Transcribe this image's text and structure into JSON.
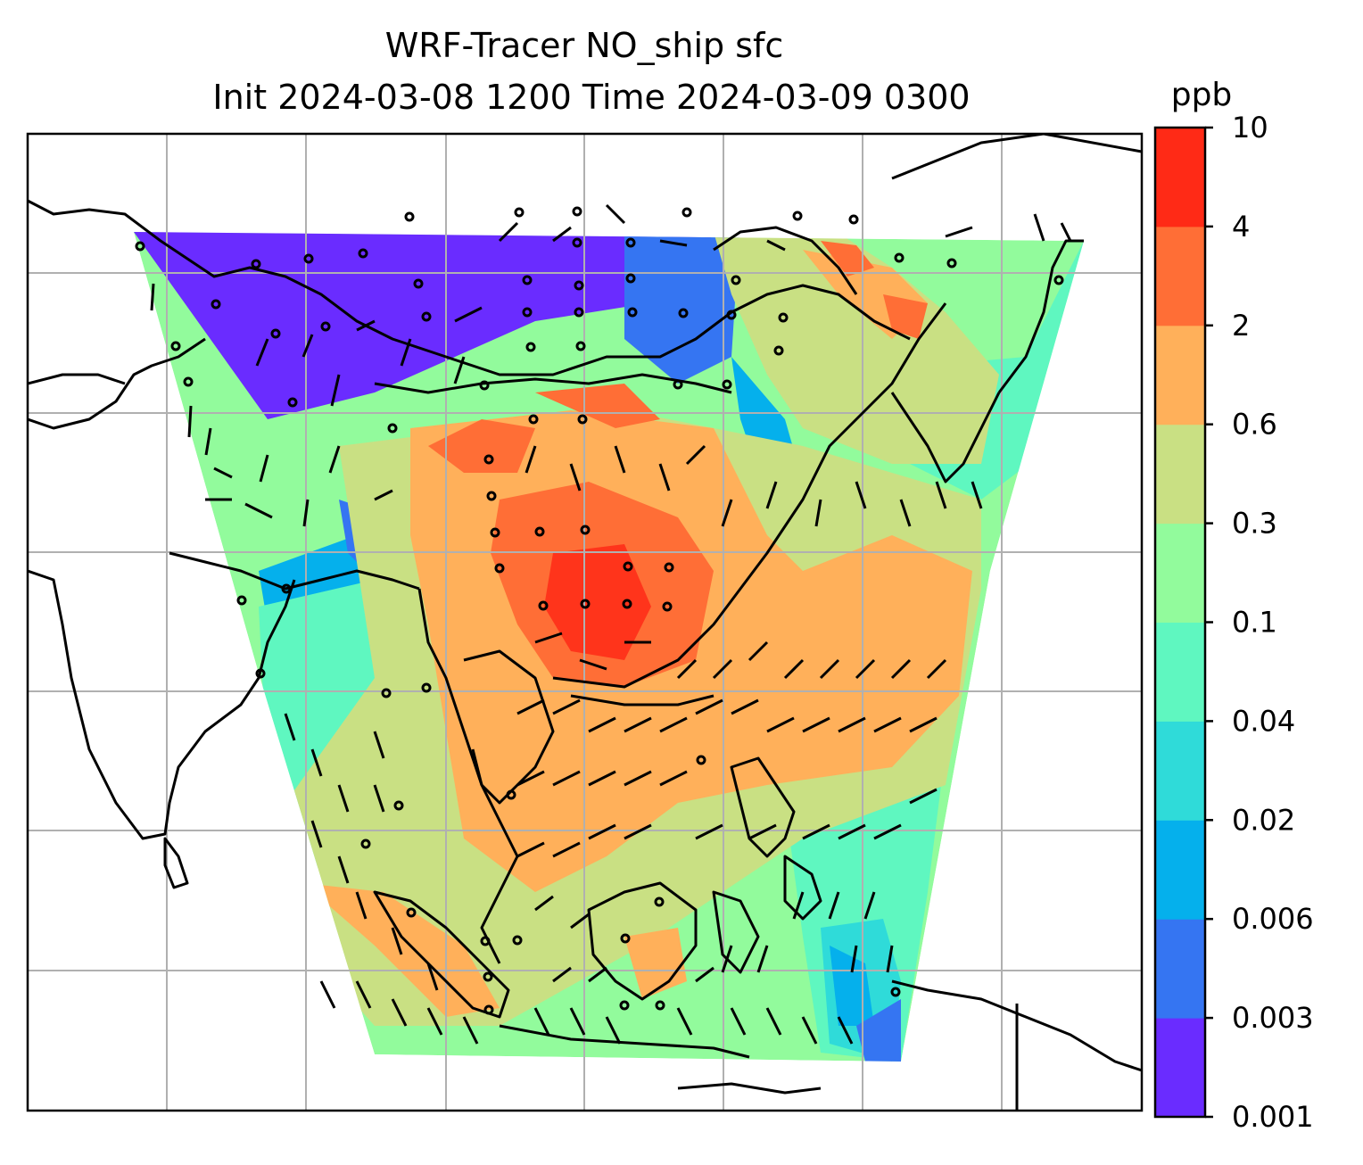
{
  "map": {
    "title_line1": "WRF-Tracer NO_ship sfc",
    "title_line2": "Init 2024-03-08 1200 Time 2024-03-09 0300",
    "variable": "NO_ship",
    "level": "sfc",
    "init_time": "2024-03-08 1200",
    "valid_time": "2024-03-09 0300",
    "gridlines": true,
    "features": [
      "coastlines",
      "country-borders",
      "wind-barbs",
      "filled-contours"
    ]
  },
  "colorbar": {
    "unit": "ppb",
    "ticks": [
      "10",
      "4",
      "2",
      "0.6",
      "0.3",
      "0.1",
      "0.04",
      "0.02",
      "0.006",
      "0.003",
      "0.001"
    ],
    "colors": [
      "#6a2cff",
      "#3575f2",
      "#05b0ec",
      "#2fdbd9",
      "#5ff7c0",
      "#92fb9c",
      "#c9e083",
      "#ffb05a",
      "#ff6e36",
      "#ff2a16"
    ]
  }
}
